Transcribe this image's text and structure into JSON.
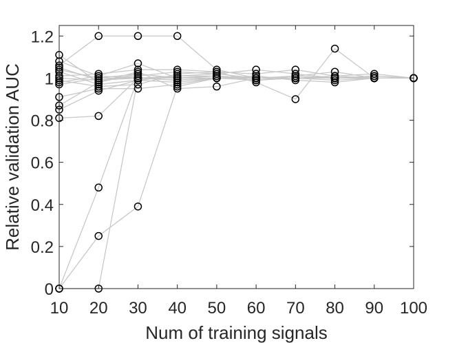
{
  "chart_data": {
    "type": "line",
    "xlabel": "Num of training signals",
    "ylabel": "Relative validation AUC",
    "xlim": [
      10,
      100
    ],
    "ylim": [
      0,
      1.25
    ],
    "x_ticks": [
      "10",
      "20",
      "30",
      "40",
      "50",
      "60",
      "70",
      "80",
      "90",
      "100"
    ],
    "y_ticks": [
      "0",
      "0.2",
      "0.4",
      "0.6",
      "0.8",
      "1",
      "1.2"
    ],
    "x": [
      10,
      20,
      30,
      40,
      50,
      60,
      70,
      80,
      90,
      100
    ],
    "grid": false,
    "line_color": "#c8c8c8",
    "marker_color": "#000000",
    "series": [
      {
        "values": [
          1.11,
          0.98,
          1.03,
          0.95,
          0.96,
          1.0,
          1.0,
          1.0,
          1.0,
          1.0
        ]
      },
      {
        "values": [
          1.08,
          1.01,
          1.0,
          1.01,
          1.02,
          1.0,
          1.01,
          1.0,
          1.0,
          1.0
        ]
      },
      {
        "values": [
          1.06,
          1.2,
          1.2,
          1.2,
          1.04,
          1.0,
          1.0,
          1.0,
          1.0,
          1.0
        ]
      },
      {
        "values": [
          1.05,
          0.99,
          1.01,
          1.03,
          1.02,
          1.04,
          1.02,
          1.0,
          1.01,
          1.0
        ]
      },
      {
        "values": [
          1.04,
          1.0,
          1.02,
          1.0,
          1.01,
          0.99,
          1.0,
          1.01,
          1.0,
          1.0
        ]
      },
      {
        "values": [
          1.03,
          0.97,
          0.99,
          0.98,
          1.0,
          1.01,
          0.99,
          0.98,
          1.0,
          1.0
        ]
      },
      {
        "values": [
          1.01,
          1.02,
          1.04,
          1.04,
          1.03,
          1.02,
          1.04,
          1.01,
          1.02,
          1.0
        ]
      },
      {
        "values": [
          1.0,
          0.99,
          1.0,
          0.99,
          1.0,
          1.0,
          1.0,
          1.0,
          1.0,
          1.0
        ]
      },
      {
        "values": [
          0.99,
          0.96,
          0.97,
          1.02,
          1.03,
          0.98,
          0.9,
          1.14,
          1.0,
          1.0
        ]
      },
      {
        "values": [
          0.98,
          1.01,
          1.07,
          1.0,
          1.01,
          0.99,
          1.0,
          1.0,
          1.01,
          1.0
        ]
      },
      {
        "values": [
          0.97,
          1.0,
          1.0,
          0.99,
          1.0,
          1.0,
          1.0,
          0.99,
          1.0,
          1.0
        ]
      },
      {
        "values": [
          0.91,
          0.95,
          0.95,
          0.97,
          1.0,
          0.99,
          1.01,
          1.03,
          1.0,
          1.0
        ]
      },
      {
        "values": [
          0.87,
          0.98,
          1.02,
          1.0,
          1.0,
          1.0,
          1.0,
          1.0,
          1.0,
          1.0
        ]
      },
      {
        "values": [
          0.85,
          0.94,
          0.99,
          1.01,
          1.01,
          1.0,
          1.0,
          1.0,
          1.0,
          1.0
        ]
      },
      {
        "values": [
          0.81,
          0.82,
          1.0,
          1.0,
          1.0,
          1.0,
          1.0,
          1.0,
          1.0,
          1.0
        ]
      },
      {
        "values": [
          0.0,
          0.48,
          1.0,
          1.0,
          1.0,
          1.0,
          1.0,
          1.0,
          1.0,
          1.0
        ]
      },
      {
        "values": [
          0.0,
          0.25,
          0.39,
          0.96,
          1.0,
          1.0,
          1.0,
          1.0,
          1.0,
          1.0
        ]
      },
      {
        "values": [
          0.0,
          0.0,
          1.0,
          1.0,
          1.0,
          1.0,
          1.0,
          1.0,
          1.0,
          1.0
        ]
      }
    ]
  }
}
